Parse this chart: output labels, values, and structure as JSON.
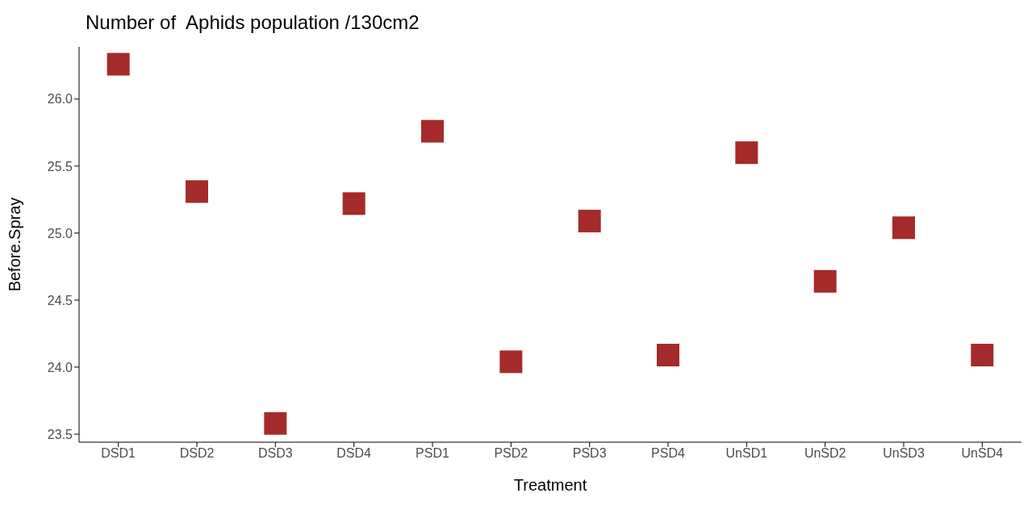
{
  "chart_data": {
    "type": "scatter",
    "title": "Number of  Aphids population /130cm2",
    "xlabel": "Treatment",
    "ylabel": "Before.Spray",
    "categories": [
      "DSD1",
      "DSD2",
      "DSD3",
      "DSD4",
      "PSD1",
      "PSD2",
      "PSD3",
      "PSD4",
      "UnSD1",
      "UnSD2",
      "UnSD3",
      "UnSD4"
    ],
    "values": [
      26.26,
      25.31,
      23.58,
      25.22,
      25.76,
      24.04,
      25.09,
      24.09,
      25.6,
      24.64,
      25.04,
      24.09
    ],
    "color": "#a52a2a",
    "marker": "square",
    "grid": false,
    "legend": false,
    "ylim": [
      23.44,
      26.39
    ],
    "yticks": [
      {
        "value": 23.5,
        "label": "23.5"
      },
      {
        "value": 24,
        "label": "24.0"
      },
      {
        "value": 24.5,
        "label": "24.5"
      },
      {
        "value": 25,
        "label": "25.0"
      },
      {
        "value": 25.5,
        "label": "25.5"
      },
      {
        "value": 26,
        "label": "26.0"
      }
    ]
  }
}
